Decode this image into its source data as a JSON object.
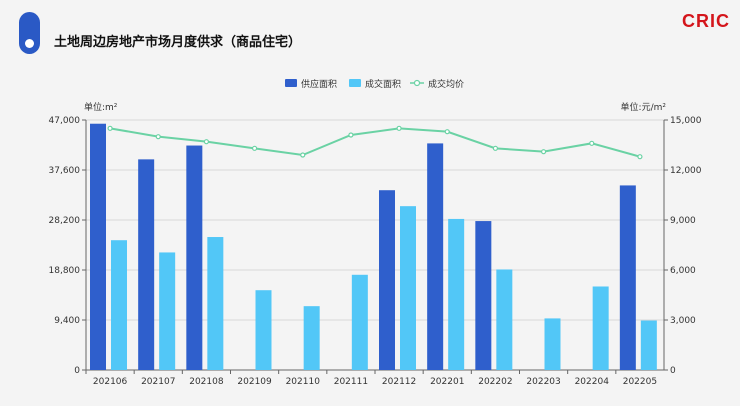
{
  "header": {
    "title": "土地周边房地产市场月度供求（商品住宅）",
    "logo": "CRIC"
  },
  "colors": {
    "supply": "#2f5fcc",
    "deal": "#52c7f7",
    "price_line": "#6ad2a4",
    "badge": "#2a59c5",
    "logo": "#d4151b"
  },
  "chart_data": {
    "type": "bar",
    "categories": [
      "202106",
      "202107",
      "202108",
      "202109",
      "202110",
      "202111",
      "202112",
      "202201",
      "202202",
      "202203",
      "202204",
      "202205"
    ],
    "series": [
      {
        "name": "供应面积",
        "kind": "bar",
        "axis": "left",
        "values": [
          46300,
          39600,
          42200,
          null,
          null,
          null,
          33800,
          42600,
          28000,
          null,
          null,
          34700
        ]
      },
      {
        "name": "成交面积",
        "kind": "bar",
        "axis": "left",
        "values": [
          24400,
          22100,
          25000,
          15000,
          12000,
          17900,
          30800,
          28400,
          18900,
          9700,
          15700,
          9300
        ]
      },
      {
        "name": "成交均价",
        "kind": "line",
        "axis": "right",
        "values": [
          14500,
          14000,
          13700,
          13300,
          12900,
          14100,
          14500,
          14300,
          13300,
          13100,
          13600,
          12800
        ]
      }
    ],
    "left_axis": {
      "unit": "单位:m²",
      "ticks": [
        "0",
        "9,400",
        "18,800",
        "28,200",
        "37,600",
        "47,000"
      ],
      "ylim": [
        0,
        47000
      ]
    },
    "right_axis": {
      "unit": "单位:元/m²",
      "ticks": [
        "0",
        "3,000",
        "6,000",
        "9,000",
        "12,000",
        "15,000"
      ],
      "ylim": [
        0,
        15000
      ]
    },
    "grid": true,
    "legend_position": "top-center"
  }
}
